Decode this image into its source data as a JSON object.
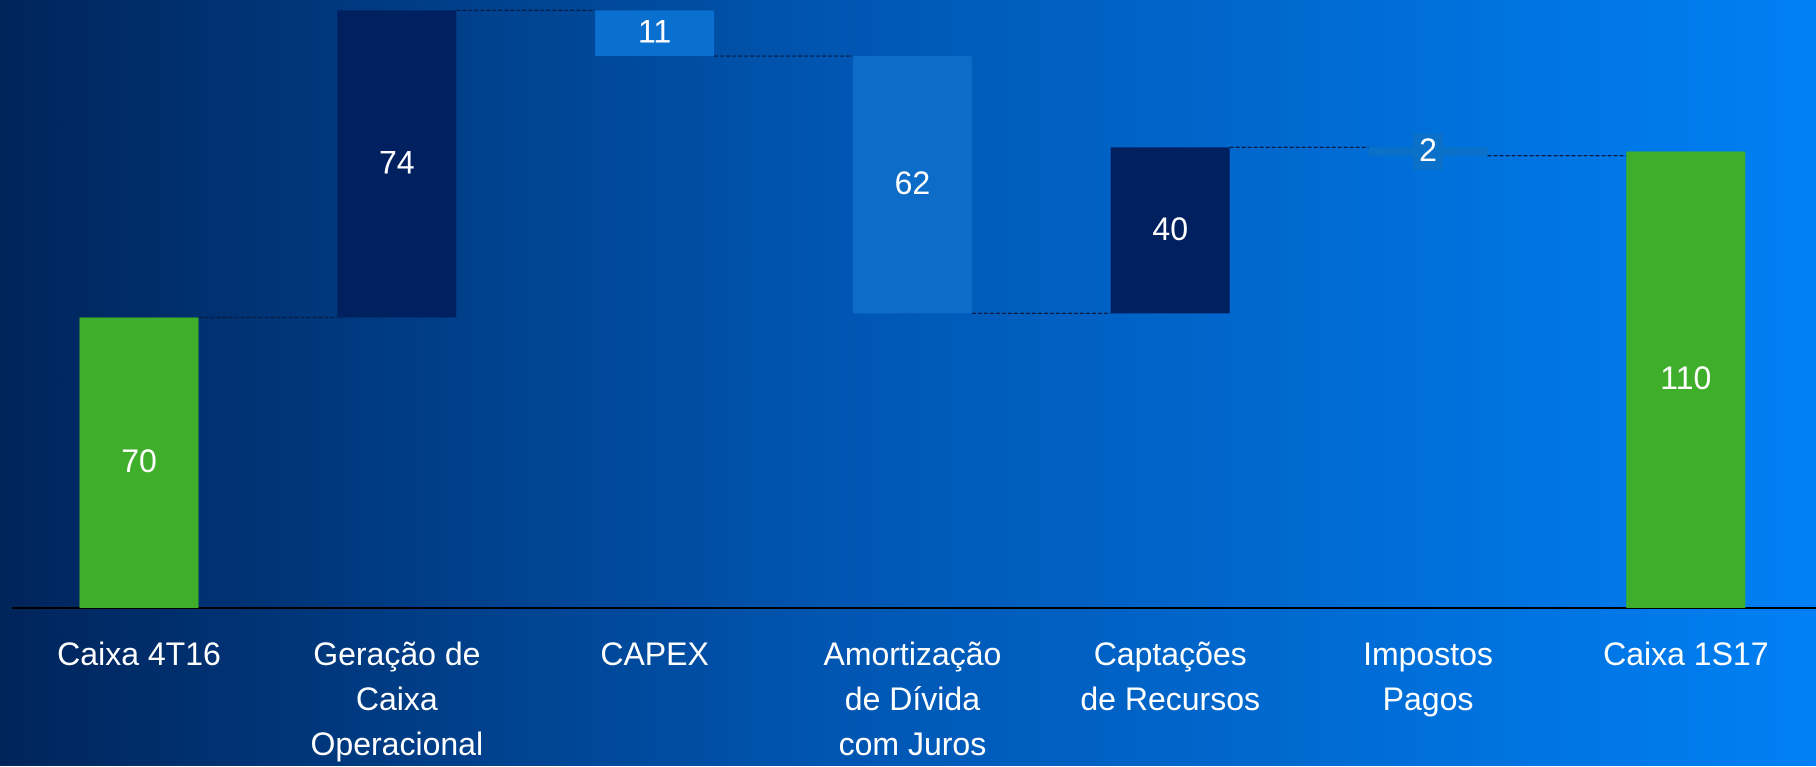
{
  "chart_data": {
    "type": "waterfall",
    "categories": [
      "Caixa 4T16",
      "Geração de\nCaixa\nOperacional",
      "CAPEX",
      "Amortização\nde Dívida\ncom Juros",
      "Captações\nde Recursos",
      "Impostos\nPagos",
      "Caixa 1S17"
    ],
    "values": [
      70,
      74,
      11,
      62,
      40,
      2,
      110
    ],
    "measure": [
      "total",
      "increase",
      "decrease",
      "decrease",
      "increase",
      "decrease",
      "total"
    ],
    "colors": [
      "#3fae2a",
      "#002060",
      "#0a70d0",
      "#0c6cc8",
      "#002060",
      "#0a70c8",
      "#3fae2a"
    ]
  }
}
